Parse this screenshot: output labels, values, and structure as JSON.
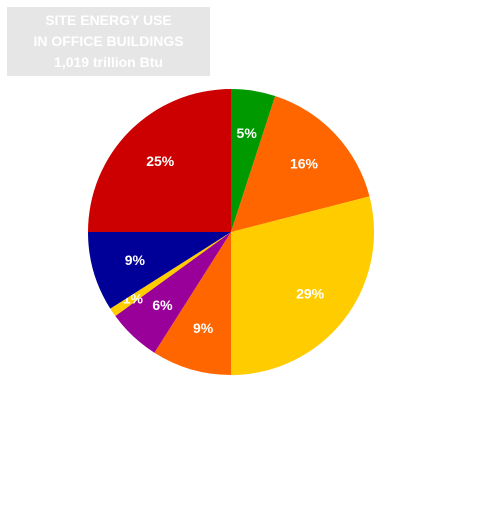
{
  "chart_data": {
    "type": "pie",
    "title_lines": [
      "SITE ENERGY USE",
      "IN OFFICE BUILDINGS",
      "1,019 trillion Btu"
    ],
    "slices": [
      {
        "value": 5,
        "label": "5%",
        "color": "#009900"
      },
      {
        "value": 16,
        "label": "16%",
        "color": "#ff6600"
      },
      {
        "value": 29,
        "label": "29%",
        "color": "#ffcc00"
      },
      {
        "value": 9,
        "label": "9%",
        "color": "#ff6600"
      },
      {
        "value": 6,
        "label": "6%",
        "color": "#990099"
      },
      {
        "value": 1,
        "label": "1%",
        "color": "#ffcc00"
      },
      {
        "value": 9,
        "label": "9%",
        "color": "#000099"
      },
      {
        "value": 25,
        "label": "25%",
        "color": "#cc0000"
      }
    ]
  }
}
